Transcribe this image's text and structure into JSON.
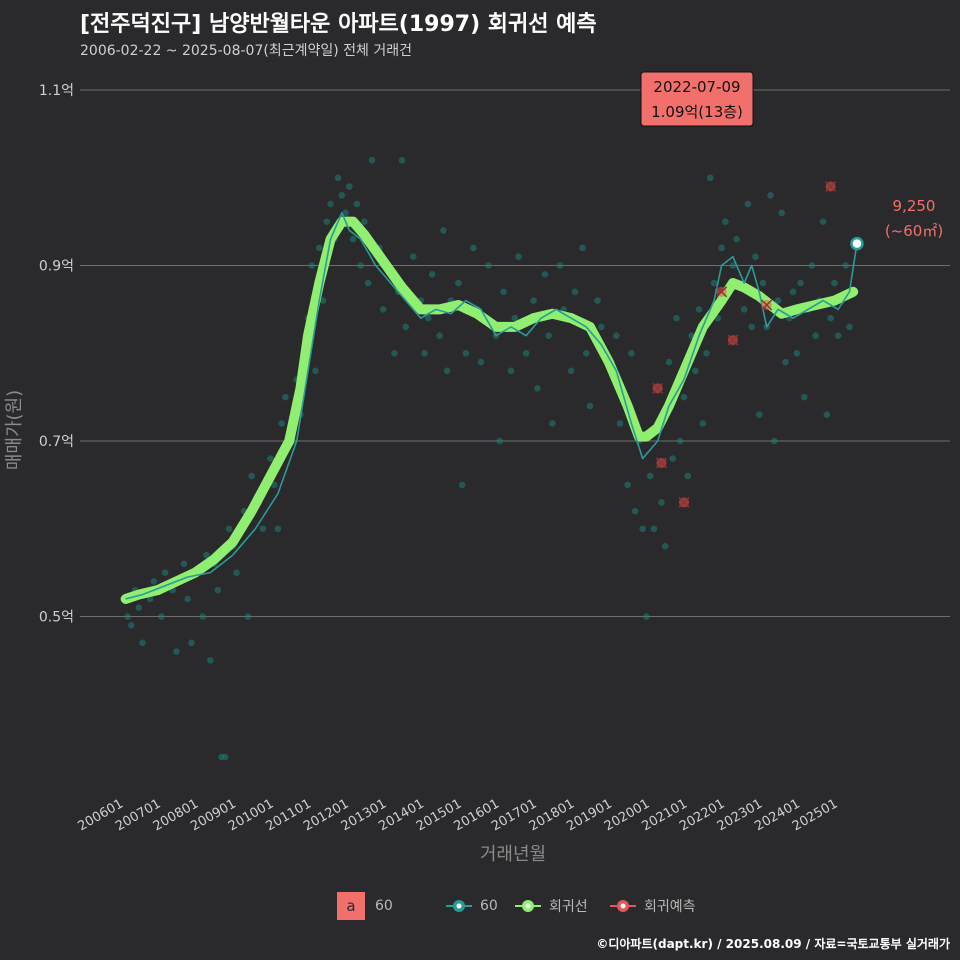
{
  "header": {
    "title": "[전주덕진구] 남양반월타운 아파트(1997) 회귀선 예측",
    "subtitle": "2006-02-22 ~ 2025-08-07(최근계약일) 전체 거래건"
  },
  "footer": {
    "credit": "©디아파트(dapt.kr) / 2025.08.09 / 자료=국토교통부 실거래가"
  },
  "colors": {
    "background": "#2a292c",
    "scatter": "#1f7f7a",
    "series60": "#2a9c98",
    "regression": "#90ee70",
    "prediction": "#e45756",
    "label_box": "#f2706b"
  },
  "annotations": {
    "max_label_date": "2022-07-09",
    "max_label_value": "1.09억(13층)",
    "last_label_value": "9,250",
    "last_label_area": "(~60㎡)"
  },
  "legend": {
    "box_letter": "a",
    "box_label": "60",
    "series_60": "60",
    "regression": "회귀선",
    "prediction": "회귀예측"
  },
  "chart_data": {
    "type": "scatter",
    "xlabel": "거래년월",
    "ylabel": "매매가(원)",
    "ylim": [
      0.3,
      1.1
    ],
    "y_ticks": [
      {
        "value": 0.5,
        "label": "0.5억"
      },
      {
        "value": 0.7,
        "label": "0.7억"
      },
      {
        "value": 0.9,
        "label": "0.9억"
      },
      {
        "value": 1.1,
        "label": "1.1억"
      }
    ],
    "x_ticks": [
      "200601",
      "200701",
      "200801",
      "200901",
      "201001",
      "201101",
      "201201",
      "201301",
      "201401",
      "201501",
      "201601",
      "201701",
      "201801",
      "201901",
      "202001",
      "202101",
      "202201",
      "202301",
      "202401",
      "202501"
    ],
    "x_range": [
      2006.0,
      2025.6
    ],
    "grid": true,
    "legend_position": "bottom",
    "series": [
      {
        "name": "회귀선",
        "x": [
          2006.15,
          2006.5,
          2007.0,
          2007.5,
          2008.0,
          2008.5,
          2009.0,
          2009.5,
          2010.0,
          2010.5,
          2010.8,
          2011.0,
          2011.3,
          2011.6,
          2011.9,
          2012.2,
          2012.5,
          2013.0,
          2013.5,
          2014.0,
          2014.5,
          2015.0,
          2015.5,
          2016.0,
          2016.5,
          2017.0,
          2017.5,
          2018.0,
          2018.5,
          2019.0,
          2019.5,
          2019.8,
          2020.0,
          2020.3,
          2020.6,
          2021.0,
          2021.5,
          2022.0,
          2022.3,
          2022.6,
          2023.0,
          2023.3,
          2023.6,
          2024.0,
          2024.5,
          2025.0,
          2025.5
        ],
        "y": [
          0.52,
          0.525,
          0.53,
          0.54,
          0.55,
          0.565,
          0.585,
          0.62,
          0.66,
          0.7,
          0.76,
          0.82,
          0.88,
          0.93,
          0.95,
          0.95,
          0.935,
          0.905,
          0.875,
          0.85,
          0.85,
          0.855,
          0.845,
          0.83,
          0.83,
          0.84,
          0.845,
          0.84,
          0.83,
          0.79,
          0.74,
          0.705,
          0.705,
          0.715,
          0.74,
          0.78,
          0.83,
          0.86,
          0.88,
          0.875,
          0.865,
          0.855,
          0.845,
          0.85,
          0.855,
          0.86,
          0.87
        ]
      },
      {
        "name": "60",
        "x": [
          2006.15,
          2006.6,
          2007.2,
          2007.8,
          2008.4,
          2009.0,
          2009.6,
          2010.2,
          2010.7,
          2011.0,
          2011.3,
          2011.6,
          2011.9,
          2012.1,
          2012.4,
          2012.8,
          2013.2,
          2013.6,
          2014.0,
          2014.4,
          2014.8,
          2015.2,
          2015.6,
          2016.0,
          2016.4,
          2016.8,
          2017.2,
          2017.6,
          2018.0,
          2018.4,
          2018.8,
          2019.2,
          2019.6,
          2019.9,
          2020.1,
          2020.3,
          2020.6,
          2021.0,
          2021.4,
          2021.8,
          2022.0,
          2022.3,
          2022.6,
          2022.8,
          2023.0,
          2023.2,
          2023.5,
          2023.9,
          2024.3,
          2024.7,
          2025.1,
          2025.4,
          2025.6
        ],
        "y": [
          0.52,
          0.525,
          0.535,
          0.545,
          0.55,
          0.57,
          0.6,
          0.64,
          0.7,
          0.78,
          0.86,
          0.93,
          0.96,
          0.94,
          0.93,
          0.9,
          0.88,
          0.86,
          0.84,
          0.85,
          0.845,
          0.86,
          0.85,
          0.82,
          0.83,
          0.82,
          0.84,
          0.85,
          0.84,
          0.83,
          0.81,
          0.78,
          0.72,
          0.68,
          0.69,
          0.7,
          0.74,
          0.77,
          0.82,
          0.86,
          0.9,
          0.91,
          0.88,
          0.9,
          0.87,
          0.83,
          0.85,
          0.84,
          0.85,
          0.86,
          0.85,
          0.87,
          0.925
        ]
      },
      {
        "name": "회귀예측",
        "x": [
          2020.3,
          2020.4,
          2021.0,
          2022.0,
          2022.3,
          2023.2,
          2024.9
        ],
        "y": [
          0.76,
          0.675,
          0.63,
          0.87,
          0.815,
          0.855,
          0.99
        ]
      }
    ],
    "scatter_points": [
      [
        2006.2,
        0.5
      ],
      [
        2006.3,
        0.49
      ],
      [
        2006.4,
        0.53
      ],
      [
        2006.5,
        0.51
      ],
      [
        2006.6,
        0.47
      ],
      [
        2006.8,
        0.52
      ],
      [
        2006.9,
        0.54
      ],
      [
        2007.1,
        0.5
      ],
      [
        2007.2,
        0.55
      ],
      [
        2007.4,
        0.53
      ],
      [
        2007.5,
        0.46
      ],
      [
        2007.7,
        0.56
      ],
      [
        2007.8,
        0.52
      ],
      [
        2007.9,
        0.47
      ],
      [
        2008.1,
        0.55
      ],
      [
        2008.2,
        0.5
      ],
      [
        2008.3,
        0.57
      ],
      [
        2008.4,
        0.45
      ],
      [
        2008.5,
        0.56
      ],
      [
        2008.6,
        0.53
      ],
      [
        2008.7,
        0.34
      ],
      [
        2008.8,
        0.34
      ],
      [
        2008.9,
        0.6
      ],
      [
        2009.0,
        0.58
      ],
      [
        2009.1,
        0.55
      ],
      [
        2009.3,
        0.62
      ],
      [
        2009.4,
        0.5
      ],
      [
        2009.5,
        0.66
      ],
      [
        2009.7,
        0.63
      ],
      [
        2009.8,
        0.6
      ],
      [
        2010.0,
        0.68
      ],
      [
        2010.1,
        0.65
      ],
      [
        2010.2,
        0.6
      ],
      [
        2010.3,
        0.72
      ],
      [
        2010.4,
        0.75
      ],
      [
        2010.6,
        0.7
      ],
      [
        2010.7,
        0.77
      ],
      [
        2010.8,
        0.73
      ],
      [
        2010.9,
        0.8
      ],
      [
        2011.0,
        0.84
      ],
      [
        2011.1,
        0.9
      ],
      [
        2011.2,
        0.78
      ],
      [
        2011.3,
        0.92
      ],
      [
        2011.4,
        0.86
      ],
      [
        2011.5,
        0.95
      ],
      [
        2011.6,
        0.97
      ],
      [
        2011.7,
        0.93
      ],
      [
        2011.8,
        1.0
      ],
      [
        2011.9,
        0.98
      ],
      [
        2012.0,
        0.96
      ],
      [
        2012.1,
        0.99
      ],
      [
        2012.2,
        0.93
      ],
      [
        2012.3,
        0.97
      ],
      [
        2012.4,
        0.9
      ],
      [
        2012.5,
        0.95
      ],
      [
        2012.6,
        0.88
      ],
      [
        2012.7,
        1.02
      ],
      [
        2012.9,
        0.92
      ],
      [
        2013.0,
        0.85
      ],
      [
        2013.2,
        0.89
      ],
      [
        2013.3,
        0.8
      ],
      [
        2013.4,
        0.87
      ],
      [
        2013.5,
        1.02
      ],
      [
        2013.6,
        0.83
      ],
      [
        2013.8,
        0.91
      ],
      [
        2014.0,
        0.86
      ],
      [
        2014.1,
        0.8
      ],
      [
        2014.2,
        0.84
      ],
      [
        2014.3,
        0.89
      ],
      [
        2014.5,
        0.82
      ],
      [
        2014.6,
        0.94
      ],
      [
        2014.7,
        0.78
      ],
      [
        2014.8,
        0.86
      ],
      [
        2015.0,
        0.88
      ],
      [
        2015.1,
        0.65
      ],
      [
        2015.2,
        0.8
      ],
      [
        2015.4,
        0.92
      ],
      [
        2015.5,
        0.85
      ],
      [
        2015.6,
        0.79
      ],
      [
        2015.8,
        0.9
      ],
      [
        2016.0,
        0.82
      ],
      [
        2016.1,
        0.7
      ],
      [
        2016.2,
        0.87
      ],
      [
        2016.4,
        0.78
      ],
      [
        2016.5,
        0.84
      ],
      [
        2016.6,
        0.91
      ],
      [
        2016.8,
        0.8
      ],
      [
        2017.0,
        0.86
      ],
      [
        2017.1,
        0.76
      ],
      [
        2017.3,
        0.89
      ],
      [
        2017.4,
        0.82
      ],
      [
        2017.5,
        0.72
      ],
      [
        2017.7,
        0.9
      ],
      [
        2017.8,
        0.85
      ],
      [
        2018.0,
        0.78
      ],
      [
        2018.1,
        0.87
      ],
      [
        2018.3,
        0.92
      ],
      [
        2018.4,
        0.8
      ],
      [
        2018.5,
        0.74
      ],
      [
        2018.7,
        0.86
      ],
      [
        2018.8,
        0.83
      ],
      [
        2019.0,
        0.79
      ],
      [
        2019.2,
        0.82
      ],
      [
        2019.3,
        0.72
      ],
      [
        2019.4,
        0.75
      ],
      [
        2019.5,
        0.65
      ],
      [
        2019.6,
        0.8
      ],
      [
        2019.7,
        0.62
      ],
      [
        2019.8,
        0.7
      ],
      [
        2019.9,
        0.6
      ],
      [
        2020.0,
        0.5
      ],
      [
        2020.1,
        0.66
      ],
      [
        2020.2,
        0.6
      ],
      [
        2020.3,
        0.72
      ],
      [
        2020.4,
        0.63
      ],
      [
        2020.5,
        0.58
      ],
      [
        2020.6,
        0.79
      ],
      [
        2020.7,
        0.68
      ],
      [
        2020.8,
        0.84
      ],
      [
        2020.9,
        0.7
      ],
      [
        2021.0,
        0.75
      ],
      [
        2021.1,
        0.66
      ],
      [
        2021.2,
        0.82
      ],
      [
        2021.3,
        0.78
      ],
      [
        2021.4,
        0.85
      ],
      [
        2021.5,
        0.72
      ],
      [
        2021.6,
        0.8
      ],
      [
        2021.7,
        1.0
      ],
      [
        2021.8,
        0.88
      ],
      [
        2021.9,
        0.84
      ],
      [
        2022.0,
        0.92
      ],
      [
        2022.1,
        0.95
      ],
      [
        2022.2,
        0.87
      ],
      [
        2022.3,
        0.9
      ],
      [
        2022.4,
        0.93
      ],
      [
        2022.5,
        1.09
      ],
      [
        2022.6,
        0.85
      ],
      [
        2022.7,
        0.97
      ],
      [
        2022.8,
        0.83
      ],
      [
        2022.9,
        0.91
      ],
      [
        2023.0,
        0.73
      ],
      [
        2023.1,
        0.88
      ],
      [
        2023.2,
        0.83
      ],
      [
        2023.3,
        0.98
      ],
      [
        2023.4,
        0.7
      ],
      [
        2023.5,
        0.86
      ],
      [
        2023.6,
        0.96
      ],
      [
        2023.7,
        0.79
      ],
      [
        2023.8,
        0.84
      ],
      [
        2023.9,
        0.87
      ],
      [
        2024.0,
        0.8
      ],
      [
        2024.1,
        0.88
      ],
      [
        2024.2,
        0.75
      ],
      [
        2024.3,
        0.85
      ],
      [
        2024.4,
        0.9
      ],
      [
        2024.5,
        0.82
      ],
      [
        2024.6,
        0.86
      ],
      [
        2024.7,
        0.95
      ],
      [
        2024.8,
        0.73
      ],
      [
        2024.9,
        0.84
      ],
      [
        2025.0,
        0.88
      ],
      [
        2025.1,
        0.82
      ],
      [
        2025.2,
        0.86
      ],
      [
        2025.3,
        0.9
      ],
      [
        2025.4,
        0.83
      ]
    ]
  }
}
